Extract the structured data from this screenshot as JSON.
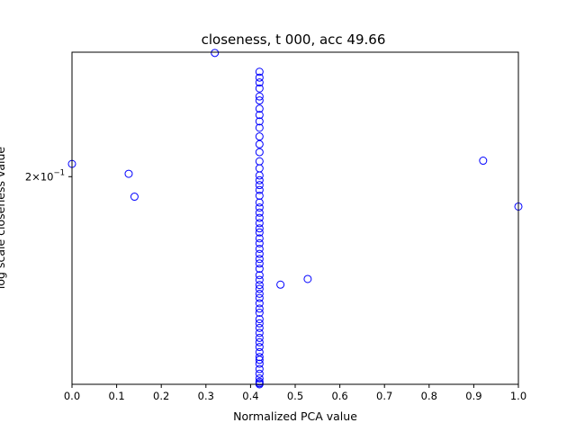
{
  "chart_data": {
    "type": "scatter",
    "title": "closeness, t 000, acc 49.66",
    "xlabel": "Normalized PCA value",
    "ylabel": "log scale closeness value",
    "xlim": [
      0.0,
      1.0
    ],
    "ylim": [
      0.1296,
      0.2594
    ],
    "y_scale": "log",
    "x_ticks": [
      "0.0",
      "0.1",
      "0.2",
      "0.3",
      "0.4",
      "0.5",
      "0.6",
      "0.7",
      "0.8",
      "0.9",
      "1.0"
    ],
    "y_ticks": [
      {
        "value": 0.2,
        "base": "2×10",
        "exponent": "−1"
      }
    ],
    "marker": {
      "shape": "open-circle",
      "color": "#0000ff"
    },
    "x": [
      0.0,
      0.127,
      0.14,
      0.32,
      0.467,
      0.528,
      0.921,
      1.0,
      0.42,
      0.42,
      0.42,
      0.42,
      0.42,
      0.42,
      0.42,
      0.42,
      0.42,
      0.42,
      0.42,
      0.42,
      0.42,
      0.42,
      0.42,
      0.42,
      0.42,
      0.42,
      0.42,
      0.42,
      0.42,
      0.42,
      0.42,
      0.42,
      0.42,
      0.42,
      0.42,
      0.42,
      0.42,
      0.42,
      0.42,
      0.42,
      0.42,
      0.42,
      0.42,
      0.42,
      0.42,
      0.42,
      0.42,
      0.42,
      0.42,
      0.42,
      0.42,
      0.42,
      0.42,
      0.42,
      0.42,
      0.42,
      0.42,
      0.42,
      0.42,
      0.42,
      0.42,
      0.42,
      0.42,
      0.42,
      0.42,
      0.42,
      0.42,
      0.42
    ],
    "y": [
      0.2054,
      0.2012,
      0.1918,
      0.259,
      0.1596,
      0.1615,
      0.2068,
      0.1879,
      0.249,
      0.246,
      0.2435,
      0.2405,
      0.2365,
      0.2345,
      0.2305,
      0.2275,
      0.2245,
      0.2215,
      0.2175,
      0.214,
      0.2105,
      0.2065,
      0.2035,
      0.2005,
      0.1985,
      0.1965,
      0.1945,
      0.1922,
      0.1895,
      0.1875,
      0.1855,
      0.1835,
      0.1815,
      0.1795,
      0.178,
      0.1758,
      0.174,
      0.172,
      0.1702,
      0.1684,
      0.1668,
      0.165,
      0.1628,
      0.1612,
      0.1595,
      0.1582,
      0.1566,
      0.1552,
      0.1535,
      0.1518,
      0.1505,
      0.1485,
      0.1472,
      0.1458,
      0.1443,
      0.1428,
      0.1415,
      0.1401,
      0.1386,
      0.1372,
      0.1353,
      0.1338,
      0.1325,
      0.1312,
      0.1303,
      0.1299,
      0.1296,
      0.1364
    ]
  }
}
